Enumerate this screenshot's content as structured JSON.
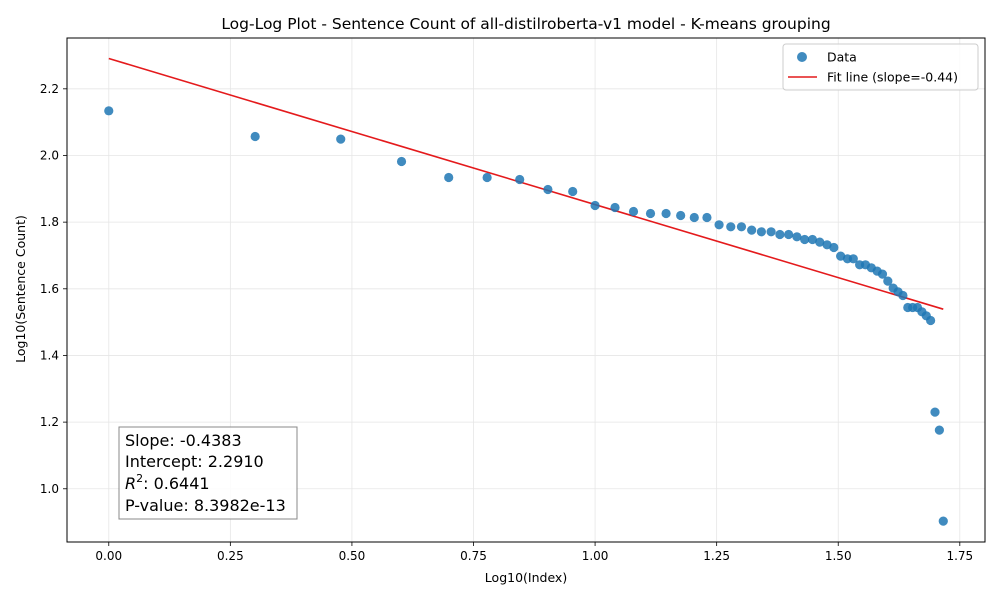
{
  "chart_data": {
    "type": "scatter",
    "title": "Log-Log Plot - Sentence Count of all-distilroberta-v1 model - K-means grouping",
    "xlabel": "Log10(Index)",
    "ylabel": "Log10(Sentence Count)",
    "xlim": [
      -0.0859,
      1.8018
    ],
    "ylim": [
      0.8403,
      2.3525
    ],
    "xticks": [
      0.0,
      0.25,
      0.5,
      0.75,
      1.0,
      1.25,
      1.5,
      1.75
    ],
    "xtick_labels": [
      "0.00",
      "0.25",
      "0.50",
      "0.75",
      "1.00",
      "1.25",
      "1.50",
      "1.75"
    ],
    "yticks": [
      1.0,
      1.2,
      1.4,
      1.6,
      1.8,
      2.0,
      2.2
    ],
    "ytick_labels": [
      "1.0",
      "1.2",
      "1.4",
      "1.6",
      "1.8",
      "2.0",
      "2.2"
    ],
    "grid": true,
    "legend_position": "top-right",
    "colors": {
      "points": "#1f77b4",
      "fit": "#e41a1c"
    },
    "series": [
      {
        "name": "Data",
        "kind": "scatter",
        "points": [
          [
            0.0,
            2.134
          ],
          [
            0.301,
            2.057
          ],
          [
            0.477,
            2.049
          ],
          [
            0.602,
            1.982
          ],
          [
            0.699,
            1.934
          ],
          [
            0.778,
            1.934
          ],
          [
            0.845,
            1.928
          ],
          [
            0.903,
            1.898
          ],
          [
            0.954,
            1.892
          ],
          [
            1.0,
            1.85
          ],
          [
            1.041,
            1.844
          ],
          [
            1.079,
            1.832
          ],
          [
            1.114,
            1.826
          ],
          [
            1.146,
            1.826
          ],
          [
            1.176,
            1.82
          ],
          [
            1.204,
            1.814
          ],
          [
            1.23,
            1.814
          ],
          [
            1.255,
            1.792
          ],
          [
            1.279,
            1.786
          ],
          [
            1.301,
            1.786
          ],
          [
            1.322,
            1.776
          ],
          [
            1.342,
            1.771
          ],
          [
            1.362,
            1.771
          ],
          [
            1.38,
            1.763
          ],
          [
            1.398,
            1.763
          ],
          [
            1.415,
            1.756
          ],
          [
            1.431,
            1.748
          ],
          [
            1.447,
            1.748
          ],
          [
            1.462,
            1.74
          ],
          [
            1.477,
            1.732
          ],
          [
            1.491,
            1.724
          ],
          [
            1.505,
            1.698
          ],
          [
            1.519,
            1.69
          ],
          [
            1.531,
            1.69
          ],
          [
            1.544,
            1.672
          ],
          [
            1.556,
            1.672
          ],
          [
            1.568,
            1.663
          ],
          [
            1.58,
            1.653
          ],
          [
            1.591,
            1.644
          ],
          [
            1.602,
            1.623
          ],
          [
            1.613,
            1.602
          ],
          [
            1.623,
            1.591
          ],
          [
            1.633,
            1.58
          ],
          [
            1.643,
            1.544
          ],
          [
            1.653,
            1.544
          ],
          [
            1.663,
            1.544
          ],
          [
            1.672,
            1.531
          ],
          [
            1.681,
            1.519
          ],
          [
            1.69,
            1.505
          ],
          [
            1.699,
            1.23
          ],
          [
            1.708,
            1.176
          ],
          [
            1.716,
            0.903
          ]
        ]
      },
      {
        "name": "Fit line (slope=-0.44)",
        "kind": "line",
        "slope": -0.4383,
        "intercept": 2.291,
        "x_range": [
          0.0,
          1.716
        ]
      }
    ],
    "annotation": {
      "slope": "Slope: -0.4383",
      "intercept": "Intercept: 2.2910",
      "r2_prefix": "R",
      "r2_sup": "2",
      "r2_value": ": 0.6441",
      "pvalue": "P-value: 8.3982e-13"
    }
  }
}
